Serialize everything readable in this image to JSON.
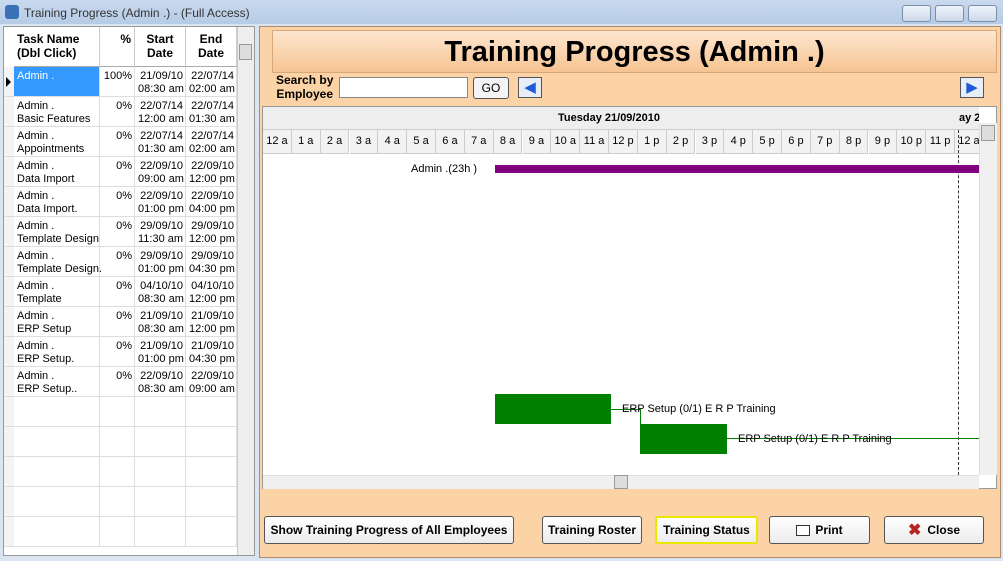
{
  "window": {
    "title": "Training Progress (Admin .) - (Full Access)"
  },
  "table": {
    "headers": [
      [
        "Task Name",
        "(Dbl Click)"
      ],
      [
        "%"
      ],
      [
        "Start",
        "Date"
      ],
      [
        "End",
        "Date"
      ]
    ],
    "rows": [
      {
        "task": [
          "Admin ."
        ],
        "pct": "100%",
        "start": [
          "21/09/10",
          "08:30 am"
        ],
        "end": [
          "22/07/14",
          "02:00 am"
        ]
      },
      {
        "task": [
          "Admin .",
          "Basic Features"
        ],
        "pct": "0%",
        "start": [
          "22/07/14",
          "12:00 am"
        ],
        "end": [
          "22/07/14",
          "01:30 am"
        ]
      },
      {
        "task": [
          "Admin .",
          "Appointments"
        ],
        "pct": "0%",
        "start": [
          "22/07/14",
          "01:30 am"
        ],
        "end": [
          "22/07/14",
          "02:00 am"
        ]
      },
      {
        "task": [
          "Admin .",
          "Data Import"
        ],
        "pct": "0%",
        "start": [
          "22/09/10",
          "09:00 am"
        ],
        "end": [
          "22/09/10",
          "12:00 pm"
        ]
      },
      {
        "task": [
          "Admin .",
          "Data Import."
        ],
        "pct": "0%",
        "start": [
          "22/09/10",
          "01:00 pm"
        ],
        "end": [
          "22/09/10",
          "04:00 pm"
        ]
      },
      {
        "task": [
          "Admin .",
          "Template Design"
        ],
        "pct": "0%",
        "start": [
          "29/09/10",
          "11:30 am"
        ],
        "end": [
          "29/09/10",
          "12:00 pm"
        ]
      },
      {
        "task": [
          "Admin .",
          "Template Design."
        ],
        "pct": "0%",
        "start": [
          "29/09/10",
          "01:00 pm"
        ],
        "end": [
          "29/09/10",
          "04:30 pm"
        ]
      },
      {
        "task": [
          "Admin .",
          "Template"
        ],
        "pct": "0%",
        "start": [
          "04/10/10",
          "08:30 am"
        ],
        "end": [
          "04/10/10",
          "12:00 pm"
        ]
      },
      {
        "task": [
          "Admin .",
          "ERP Setup"
        ],
        "pct": "0%",
        "start": [
          "21/09/10",
          "08:30 am"
        ],
        "end": [
          "21/09/10",
          "12:00 pm"
        ]
      },
      {
        "task": [
          "Admin .",
          "ERP Setup."
        ],
        "pct": "0%",
        "start": [
          "21/09/10",
          "01:00 pm"
        ],
        "end": [
          "21/09/10",
          "04:30 pm"
        ]
      },
      {
        "task": [
          "Admin .",
          "ERP Setup.."
        ],
        "pct": "0%",
        "start": [
          "22/09/10",
          "08:30 am"
        ],
        "end": [
          "22/09/10",
          "09:00 am"
        ]
      }
    ]
  },
  "panel": {
    "heading": "Training Progress (Admin .)",
    "search_label": [
      "Search by",
      "Employee"
    ],
    "go": "GO"
  },
  "gantt": {
    "date": "Tuesday 21/09/2010",
    "next_date": "ay 2",
    "hours": [
      "12 a",
      "1 a",
      "2 a",
      "3 a",
      "4 a",
      "5 a",
      "6 a",
      "7 a",
      "8 a",
      "9 a",
      "10 a",
      "11 a",
      "12 p",
      "1 p",
      "2 p",
      "3 p",
      "4 p",
      "5 p",
      "6 p",
      "7 p",
      "8 p",
      "9 p",
      "10 p",
      "11 p",
      "12 a"
    ],
    "labels": [
      "Admin .(23h )",
      "ERP Setup (0/1) E R P Training",
      "ERP Setup (0/1) E R P Training"
    ]
  },
  "buttons": [
    "Show Training Progress of All Employees",
    "Training Roster",
    "Training Status",
    "Print",
    "Close"
  ]
}
